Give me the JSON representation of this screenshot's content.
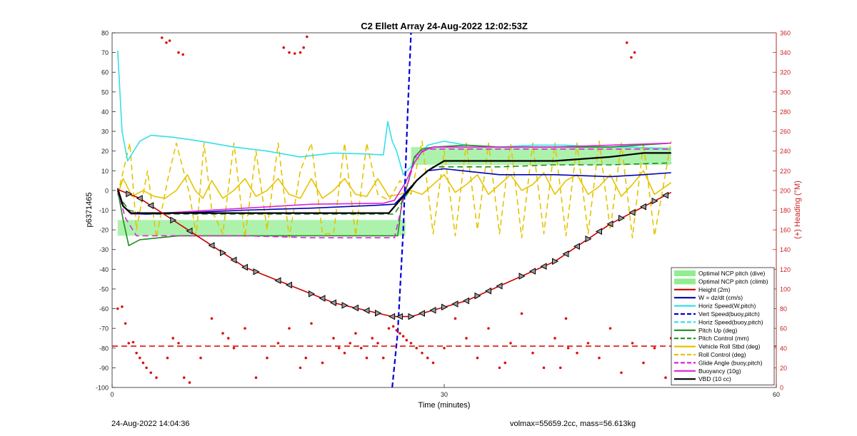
{
  "footer": {
    "timestamp": "24-Aug-2022 14:04:36",
    "summary": "volmax=55659.2cc, mass=56.613kg"
  },
  "chart_data": {
    "type": "line",
    "title": "C2 Ellett Array 24-Aug-2022 12:02:53Z",
    "xlabel": "Time (minutes)",
    "ylabel": "p6371465",
    "y2label": "(+) Heading (°M)",
    "xlim": [
      0,
      60
    ],
    "ylim": [
      -100,
      80
    ],
    "y2lim": [
      0,
      360
    ],
    "xticks": [
      "0",
      "30",
      "60"
    ],
    "yticks": [
      "80",
      "70",
      "60",
      "50",
      "40",
      "30",
      "20",
      "10",
      "0",
      "-10",
      "-20",
      "-30",
      "-40",
      "-50",
      "-60",
      "-70",
      "-80",
      "-90",
      "-100"
    ],
    "y2ticks": [
      "360",
      "340",
      "320",
      "300",
      "280",
      "260",
      "240",
      "220",
      "200",
      "180",
      "160",
      "140",
      "120",
      "100",
      "80",
      "60",
      "40",
      "20",
      "0"
    ],
    "grid": false,
    "legend_position": "bottom-right",
    "colors": {
      "ncp_fill": "#90ee90",
      "height": "#cc0000",
      "w": "#0000b4",
      "horiz_speed": "#33e0e8",
      "vert_speed": "#0000dd",
      "pitch": "#1e8c1e",
      "roll": "#e6c300",
      "buoyancy": "#dd22dd",
      "vbd": "#000000",
      "heading": "#dd1111"
    },
    "legend": [
      {
        "label": "Optimal NCP pitch (dive)",
        "color": "#90ee90",
        "style": "patch"
      },
      {
        "label": "Optimal NCP pitch (climb)",
        "color": "#90ee90",
        "style": "patch"
      },
      {
        "label": "Height (2m)",
        "color": "#cc0000",
        "style": "solid"
      },
      {
        "label": "W = dz/dt (cm/s)",
        "color": "#0000b4",
        "style": "solid"
      },
      {
        "label": "Horiz Speed(W,pitch)",
        "color": "#33e0e8",
        "style": "solid"
      },
      {
        "label": "Vert Speed(buoy,pitch)",
        "color": "#0000dd",
        "style": "dashed"
      },
      {
        "label": "Horiz Speed(buoy,pitch)",
        "color": "#33e0e8",
        "style": "dashed"
      },
      {
        "label": "Pitch Up (deg)",
        "color": "#1e8c1e",
        "style": "solid"
      },
      {
        "label": "Pitch Control (mm)",
        "color": "#1e8c1e",
        "style": "dashed"
      },
      {
        "label": "Vehicle Roll Stbd (deg)",
        "color": "#e6c300",
        "style": "solid"
      },
      {
        "label": "Roll Control (deg)",
        "color": "#e6c300",
        "style": "dashed"
      },
      {
        "label": "Glide Angle (buoy,pitch)",
        "color": "#dd22dd",
        "style": "dashed"
      },
      {
        "label": "Buoyancy (10g)",
        "color": "#dd22dd",
        "style": "solid"
      },
      {
        "label": "VBD (10 cc)",
        "color": "#000000",
        "style": "solid"
      }
    ],
    "ncp_bands": [
      {
        "name": "Optimal NCP pitch (dive)",
        "x": [
          0.5,
          26.5
        ],
        "y": [
          -23,
          -15
        ]
      },
      {
        "name": "Optimal NCP pitch (climb)",
        "x": [
          27,
          50.5
        ],
        "y": [
          13,
          22
        ]
      }
    ],
    "series": [
      {
        "key": "height",
        "dash": false,
        "width": 1.6,
        "x": [
          0.5,
          2.5,
          12,
          20,
          25.3,
          27,
          32,
          40,
          45,
          50.5
        ],
        "y": [
          0.5,
          -4,
          -39,
          -57,
          -64,
          -64,
          -56,
          -36,
          -17,
          -1
        ]
      },
      {
        "key": "w",
        "dash": false,
        "width": 1.6,
        "x": [
          0.5,
          1,
          1.7,
          3,
          6,
          12,
          18,
          24,
          25.5,
          26.2,
          27,
          27.7,
          28.5,
          30,
          35,
          40,
          45,
          48,
          50.5
        ],
        "y": [
          0,
          -8,
          -11.5,
          -12,
          -11.5,
          -10,
          -9,
          -7.5,
          -7,
          -3,
          2,
          6,
          10,
          11,
          8,
          8,
          7,
          8,
          9
        ]
      },
      {
        "key": "horiz_speed",
        "dash": false,
        "width": 1.6,
        "x": [
          0.5,
          0.9,
          1.4,
          2.5,
          3.5,
          5.5,
          8,
          11,
          14,
          17,
          20,
          23,
          24.5,
          24.9,
          25.3,
          25.7,
          26,
          26.3,
          27,
          28.5,
          30,
          32,
          35,
          38,
          41,
          44,
          47,
          50.5
        ],
        "y": [
          71,
          30,
          15,
          25,
          28,
          27,
          25,
          22,
          20,
          17,
          19,
          18.5,
          18,
          35,
          25,
          20,
          14,
          8,
          12,
          23,
          25,
          23,
          22,
          23,
          23,
          22,
          22,
          21
        ]
      },
      {
        "key": "vert_speed",
        "dash": true,
        "width": 2.2,
        "x": [
          25.3,
          25.8,
          26.3,
          26.7,
          27
        ],
        "y": [
          -100,
          -72,
          -20,
          40,
          80
        ]
      },
      {
        "key": "pitch",
        "dash": false,
        "width": 1.6,
        "x": [
          0.5,
          1,
          1.5,
          2.5,
          6,
          12,
          18,
          24,
          25.8,
          26.2,
          26.8,
          27.3,
          28,
          29,
          32,
          35,
          40,
          45,
          50.5
        ],
        "y": [
          0,
          -15,
          -28,
          -25,
          -23,
          -23,
          -23,
          -23,
          -23,
          -5,
          5,
          17,
          21,
          22,
          23,
          22,
          22,
          22,
          24
        ]
      },
      {
        "key": "pitch_control",
        "dash": true,
        "width": 1.6,
        "x": [
          0.5,
          1.5,
          3,
          10,
          20,
          25.5,
          26.5,
          27.5,
          29,
          35,
          40,
          45,
          50.5
        ],
        "y": [
          -2,
          -10,
          -12,
          -12,
          -12,
          -12,
          -3,
          5,
          12,
          12,
          13,
          13,
          14
        ]
      },
      {
        "key": "roll",
        "dash": false,
        "width": 1.6,
        "x": [
          0.5,
          1,
          1.8,
          2.8,
          3.8,
          4.8,
          5.8,
          6.8,
          7.5,
          8.2,
          9,
          10,
          11,
          12,
          13,
          14,
          15,
          16,
          17,
          18,
          19,
          20,
          21,
          22,
          23,
          24,
          25,
          26,
          27,
          28,
          29,
          30,
          31,
          32,
          33,
          34,
          35,
          36,
          37,
          38,
          39,
          40,
          41,
          42,
          43,
          44,
          45,
          46,
          47,
          48,
          49,
          50.5
        ],
        "y": [
          -2,
          6,
          -3,
          0,
          -3,
          -4,
          0,
          8,
          0,
          -4,
          5,
          -4,
          0,
          6,
          -3,
          0,
          6,
          -2,
          -4,
          6,
          -4,
          0,
          6,
          -2,
          -3,
          6,
          -3,
          -2,
          0,
          -2,
          3,
          8,
          -1,
          3,
          8,
          -2,
          3,
          8,
          0,
          3,
          9,
          -2,
          5,
          8,
          -2,
          2,
          8,
          -3,
          3,
          10,
          -2,
          4
        ]
      },
      {
        "key": "roll",
        "dash": true,
        "width": 1.6,
        "x": [
          0.5,
          1.6,
          2.2,
          3.2,
          4,
          5,
          5.8,
          7,
          7.6,
          8.3,
          9,
          10,
          11,
          12,
          13,
          14,
          15,
          16,
          17,
          18,
          19,
          20,
          21,
          22,
          23,
          24,
          25,
          26,
          27,
          28,
          29,
          30,
          31,
          32,
          33,
          34,
          35,
          36,
          37,
          38,
          39,
          40,
          41,
          42,
          43,
          44,
          45,
          46,
          47,
          48,
          49,
          50.5
        ],
        "y": [
          -2,
          24,
          -20,
          10,
          -24,
          5,
          24,
          -2,
          -23,
          24,
          -10,
          -22,
          24,
          -24,
          20,
          -20,
          24,
          -24,
          10,
          24,
          -22,
          -22,
          24,
          -23,
          24,
          -2,
          -5,
          5,
          -2,
          25,
          -22,
          20,
          -23,
          24,
          -20,
          24,
          -22,
          24,
          -24,
          24,
          -22,
          24,
          -23,
          24,
          -22,
          25,
          -20,
          24,
          -24,
          24,
          -23,
          25
        ]
      },
      {
        "key": "buoyancy",
        "dash": false,
        "width": 1.6,
        "x": [
          0.5,
          1,
          1.7,
          3,
          6,
          12,
          18,
          24.5,
          25.5,
          26.5,
          27.3,
          28,
          29,
          30,
          35,
          40,
          45,
          50.5
        ],
        "y": [
          0,
          -8,
          -12,
          -12,
          -11,
          -9,
          -7,
          -6.5,
          -5,
          4,
          14,
          20,
          22,
          22,
          22,
          22,
          23,
          24
        ]
      },
      {
        "key": "buoyancy",
        "dash": true,
        "width": 1.6,
        "x": [
          0.5,
          1.2,
          2.2,
          3,
          6,
          12,
          18,
          24,
          25.5,
          26.5,
          27.5,
          28.5,
          29.5,
          35,
          40,
          45,
          50.5
        ],
        "y": [
          0,
          -14,
          -23,
          -23,
          -23,
          -23,
          -24,
          -24,
          -24,
          0,
          18,
          21,
          21,
          21,
          21,
          21,
          21
        ]
      },
      {
        "key": "vbd",
        "dash": false,
        "width": 2.2,
        "x": [
          0.5,
          1,
          1.7,
          3,
          10,
          20,
          25,
          26,
          26.8,
          27.5,
          28.5,
          30,
          40,
          45,
          48,
          50.5
        ],
        "y": [
          1,
          -8,
          -11.5,
          -11.5,
          -11.5,
          -11.5,
          -11.5,
          -5,
          0,
          5,
          10,
          15,
          15,
          17,
          19,
          19
        ]
      }
    ],
    "markers": {
      "height_triangles_x": [
        1.5,
        2.5,
        3.5,
        5.5,
        7,
        9,
        10,
        11,
        12,
        13,
        15,
        16,
        18,
        19,
        20,
        21,
        22,
        23,
        24,
        25.3,
        26,
        27,
        28,
        29,
        30,
        31,
        32,
        33,
        34,
        35,
        37,
        38,
        39,
        40,
        41,
        42,
        43,
        44,
        45,
        46,
        47,
        48,
        49,
        50
      ]
    },
    "heading_points": {
      "x": [
        0.5,
        0.9,
        1.2,
        1.5,
        1.9,
        2.2,
        2.5,
        2.8,
        3.1,
        3.5,
        4,
        5,
        5.5,
        6,
        6.5,
        7,
        8,
        9,
        10,
        10.5,
        11,
        12,
        13,
        14,
        15,
        16,
        17,
        17.5,
        18,
        19,
        20,
        20.5,
        21,
        21.5,
        22,
        22.5,
        23,
        23.5,
        24,
        24.5,
        25,
        25.4,
        25.7,
        26,
        26.3,
        26.6,
        27,
        27.5,
        28,
        28.5,
        29,
        30,
        31,
        32,
        33,
        34,
        35,
        35.5,
        36,
        37,
        38,
        39,
        40,
        41,
        42,
        43,
        44,
        45,
        46,
        47,
        48,
        49,
        50,
        50.5,
        4.5,
        4.9,
        5.2,
        6,
        6.4,
        15.5,
        16,
        16.5,
        17,
        17.3,
        17.6,
        46.5,
        46.9,
        47.2,
        40.5,
        41.2
      ],
      "y": [
        80,
        82,
        65,
        45,
        46,
        35,
        30,
        25,
        20,
        15,
        10,
        30,
        50,
        45,
        10,
        5,
        30,
        70,
        55,
        50,
        40,
        60,
        10,
        30,
        45,
        60,
        20,
        30,
        65,
        25,
        50,
        40,
        35,
        45,
        55,
        40,
        30,
        50,
        45,
        30,
        60,
        62,
        58,
        55,
        52,
        48,
        45,
        40,
        35,
        30,
        25,
        40,
        70,
        50,
        30,
        60,
        20,
        25,
        45,
        75,
        35,
        20,
        50,
        70,
        35,
        45,
        30,
        60,
        15,
        45,
        25,
        40,
        10,
        50,
        355,
        350,
        352,
        340,
        338,
        345,
        340,
        339,
        340,
        345,
        356,
        350,
        335,
        340,
        20,
        40
      ]
    }
  }
}
